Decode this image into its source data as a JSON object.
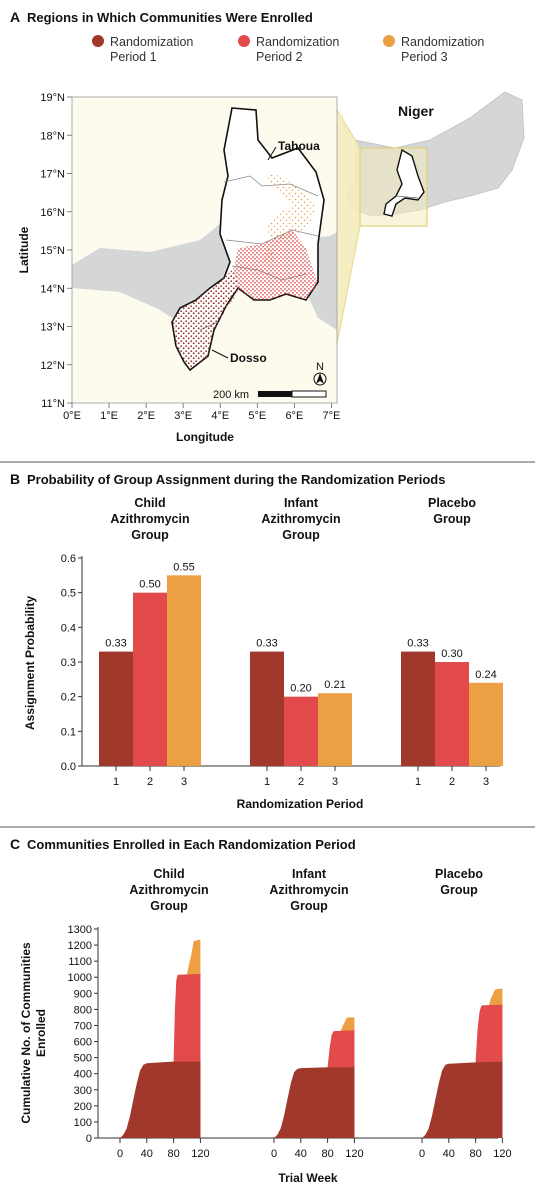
{
  "colors": {
    "period1": "#A0392C",
    "period2": "#E24A4C",
    "period3": "#EDA043",
    "land": "#d4d6d8",
    "map_bg": "#fdfbee",
    "highlight": "#f1e7a6",
    "border": "#7a7a7a"
  },
  "panelA": {
    "letter": "A",
    "title": "Regions in Which Communities Were Enrolled",
    "legend": [
      {
        "line1": "Randomization",
        "line2": "Period 1"
      },
      {
        "line1": "Randomization",
        "line2": "Period 2"
      },
      {
        "line1": "Randomization",
        "line2": "Period 3"
      }
    ],
    "y_ticks": [
      "19°N",
      "18°N",
      "17°N",
      "16°N",
      "15°N",
      "14°N",
      "13°N",
      "12°N",
      "11°N"
    ],
    "x_ticks": [
      "0°E",
      "1°E",
      "2°E",
      "3°E",
      "4°E",
      "5°E",
      "6°E",
      "7°E"
    ],
    "ylabel": "Latitude",
    "xlabel": "Longitude",
    "labels": {
      "tahoua": "Tahoua",
      "dosso": "Dosso",
      "niger": "Niger",
      "north": "N",
      "scale": "200 km"
    }
  },
  "panelB": {
    "letter": "B",
    "title": "Probability of Group Assignment during the Randomization Periods",
    "ylabel": "Assignment Probability",
    "xlabel": "Randomization Period",
    "groups": [
      {
        "line1": "Child",
        "line2": "Azithromycin",
        "line3": "Group"
      },
      {
        "line1": "Infant",
        "line2": "Azithromycin",
        "line3": "Group"
      },
      {
        "line1": "Placebo",
        "line2": "Group",
        "line3": ""
      }
    ]
  },
  "panelC": {
    "letter": "C",
    "title": "Communities Enrolled in Each Randomization Period",
    "ylabel_line1": "Cumulative No. of Communities",
    "ylabel_line2": "Enrolled",
    "xlabel": "Trial Week",
    "groups": [
      {
        "line1": "Child",
        "line2": "Azithromycin",
        "line3": "Group"
      },
      {
        "line1": "Infant",
        "line2": "Azithromycin",
        "line3": "Group"
      },
      {
        "line1": "Placebo",
        "line2": "Group",
        "line3": ""
      }
    ]
  },
  "chart_data": [
    {
      "type": "bar",
      "panel": "B",
      "title": "Probability of Group Assignment during the Randomization Periods",
      "xlabel": "Randomization Period",
      "ylabel": "Assignment Probability",
      "ylim": [
        0,
        0.6
      ],
      "yticks": [
        0.0,
        0.1,
        0.2,
        0.3,
        0.4,
        0.5,
        0.6
      ],
      "categories": [
        "1",
        "2",
        "3"
      ],
      "groups": [
        {
          "name": "Child Azithromycin Group",
          "values": [
            0.33,
            0.5,
            0.55
          ],
          "labels": [
            "0.33",
            "0.50",
            "0.55"
          ]
        },
        {
          "name": "Infant Azithromycin Group",
          "values": [
            0.33,
            0.2,
            0.21
          ],
          "labels": [
            "0.33",
            "0.20",
            "0.21"
          ]
        },
        {
          "name": "Placebo Group",
          "values": [
            0.33,
            0.3,
            0.24
          ],
          "labels": [
            "0.33",
            "0.30",
            "0.24"
          ]
        }
      ],
      "grid": false
    },
    {
      "type": "area",
      "panel": "C",
      "title": "Communities Enrolled in Each Randomization Period",
      "xlabel": "Trial Week",
      "ylabel": "Cumulative No. of Communities Enrolled",
      "xlim": [
        -20,
        140
      ],
      "xticks": [
        0,
        40,
        80,
        120
      ],
      "ylim": [
        0,
        1300
      ],
      "yticks": [
        0,
        100,
        200,
        300,
        400,
        500,
        600,
        700,
        800,
        900,
        1000,
        1100,
        1200,
        1300
      ],
      "grid": false,
      "groups": [
        {
          "name": "Child Azithromycin Group",
          "series": [
            {
              "name": "Period 1",
              "points": [
                [
                  0,
                  0
                ],
                [
                  5,
                  20
                ],
                [
                  10,
                  60
                ],
                [
                  15,
                  140
                ],
                [
                  20,
                  240
                ],
                [
                  25,
                  340
                ],
                [
                  30,
                  420
                ],
                [
                  35,
                  455
                ],
                [
                  40,
                  465
                ],
                [
                  60,
                  470
                ],
                [
                  80,
                  475
                ],
                [
                  120,
                  475
                ]
              ]
            },
            {
              "name": "Period 2",
              "points": [
                [
                  80,
                  475
                ],
                [
                  82,
                  800
                ],
                [
                  84,
                  980
                ],
                [
                  86,
                  1015
                ],
                [
                  120,
                  1020
                ]
              ]
            },
            {
              "name": "Period 3",
              "points": [
                [
                  100,
                  1020
                ],
                [
                  103,
                  1080
                ],
                [
                  106,
                  1130
                ],
                [
                  108,
                  1180
                ],
                [
                  110,
                  1225
                ],
                [
                  120,
                  1235
                ]
              ]
            }
          ]
        },
        {
          "name": "Infant Azithromycin Group",
          "series": [
            {
              "name": "Period 1",
              "points": [
                [
                  0,
                  0
                ],
                [
                  5,
                  20
                ],
                [
                  10,
                  60
                ],
                [
                  15,
                  140
                ],
                [
                  20,
                  240
                ],
                [
                  25,
                  340
                ],
                [
                  30,
                  410
                ],
                [
                  35,
                  430
                ],
                [
                  40,
                  435
                ],
                [
                  80,
                  440
                ],
                [
                  120,
                  440
                ]
              ]
            },
            {
              "name": "Period 2",
              "points": [
                [
                  80,
                  440
                ],
                [
                  83,
                  560
                ],
                [
                  86,
                  640
                ],
                [
                  89,
                  665
                ],
                [
                  120,
                  670
                ]
              ]
            },
            {
              "name": "Period 3",
              "points": [
                [
                  100,
                  670
                ],
                [
                  103,
                  700
                ],
                [
                  106,
                  725
                ],
                [
                  108,
                  745
                ],
                [
                  110,
                  750
                ],
                [
                  120,
                  750
                ]
              ]
            }
          ]
        },
        {
          "name": "Placebo Group",
          "series": [
            {
              "name": "Period 1",
              "points": [
                [
                  0,
                  0
                ],
                [
                  5,
                  20
                ],
                [
                  10,
                  60
                ],
                [
                  15,
                  140
                ],
                [
                  20,
                  240
                ],
                [
                  25,
                  340
                ],
                [
                  30,
                  420
                ],
                [
                  35,
                  455
                ],
                [
                  40,
                  462
                ],
                [
                  80,
                  470
                ],
                [
                  120,
                  475
                ]
              ]
            },
            {
              "name": "Period 2",
              "points": [
                [
                  80,
                  475
                ],
                [
                  83,
                  680
                ],
                [
                  86,
                  790
                ],
                [
                  89,
                  825
                ],
                [
                  120,
                  830
                ]
              ]
            },
            {
              "name": "Period 3",
              "points": [
                [
                  100,
                  830
                ],
                [
                  103,
                  870
                ],
                [
                  106,
                  895
                ],
                [
                  108,
                  915
                ],
                [
                  110,
                  925
                ],
                [
                  120,
                  930
                ]
              ]
            }
          ]
        }
      ]
    }
  ]
}
